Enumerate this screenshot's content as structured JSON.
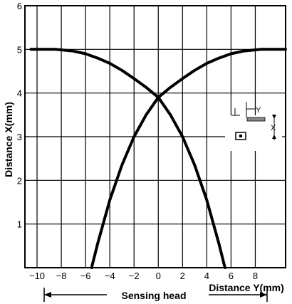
{
  "chart_data": {
    "type": "line",
    "title": "",
    "xlabel": "Distance Y(mm)",
    "ylabel": "Distance X(mm)",
    "xlim": [
      -11,
      10.5
    ],
    "ylim": [
      0,
      6
    ],
    "xticks": [
      -10,
      -8,
      -6,
      -4,
      -2,
      0,
      2,
      4,
      6,
      8
    ],
    "yticks": [
      1,
      2,
      3,
      4,
      5,
      6
    ],
    "grid": true,
    "annotation": "Sensing head",
    "series": [
      {
        "points": [
          [
            -10.5,
            5.0
          ],
          [
            -8.5,
            5.0
          ],
          [
            -7,
            4.96
          ],
          [
            -6,
            4.9
          ],
          [
            -5,
            4.8
          ],
          [
            -4,
            4.68
          ],
          [
            -3,
            4.52
          ],
          [
            -2,
            4.33
          ],
          [
            -1,
            4.13
          ],
          [
            0,
            3.9
          ],
          [
            1,
            3.5
          ],
          [
            2,
            3.0
          ],
          [
            3,
            2.35
          ],
          [
            4,
            1.55
          ],
          [
            5,
            0.55
          ],
          [
            5.5,
            0.0
          ]
        ]
      },
      {
        "points": [
          [
            -5.5,
            0.0
          ],
          [
            -5,
            0.55
          ],
          [
            -4,
            1.55
          ],
          [
            -3,
            2.35
          ],
          [
            -2,
            3.0
          ],
          [
            -1,
            3.5
          ],
          [
            0,
            3.9
          ],
          [
            1,
            4.13
          ],
          [
            2,
            4.33
          ],
          [
            3,
            4.52
          ],
          [
            4,
            4.68
          ],
          [
            5,
            4.8
          ],
          [
            6,
            4.9
          ],
          [
            7,
            4.96
          ],
          [
            8.5,
            5.0
          ],
          [
            10.5,
            5.0
          ]
        ]
      }
    ]
  }
}
